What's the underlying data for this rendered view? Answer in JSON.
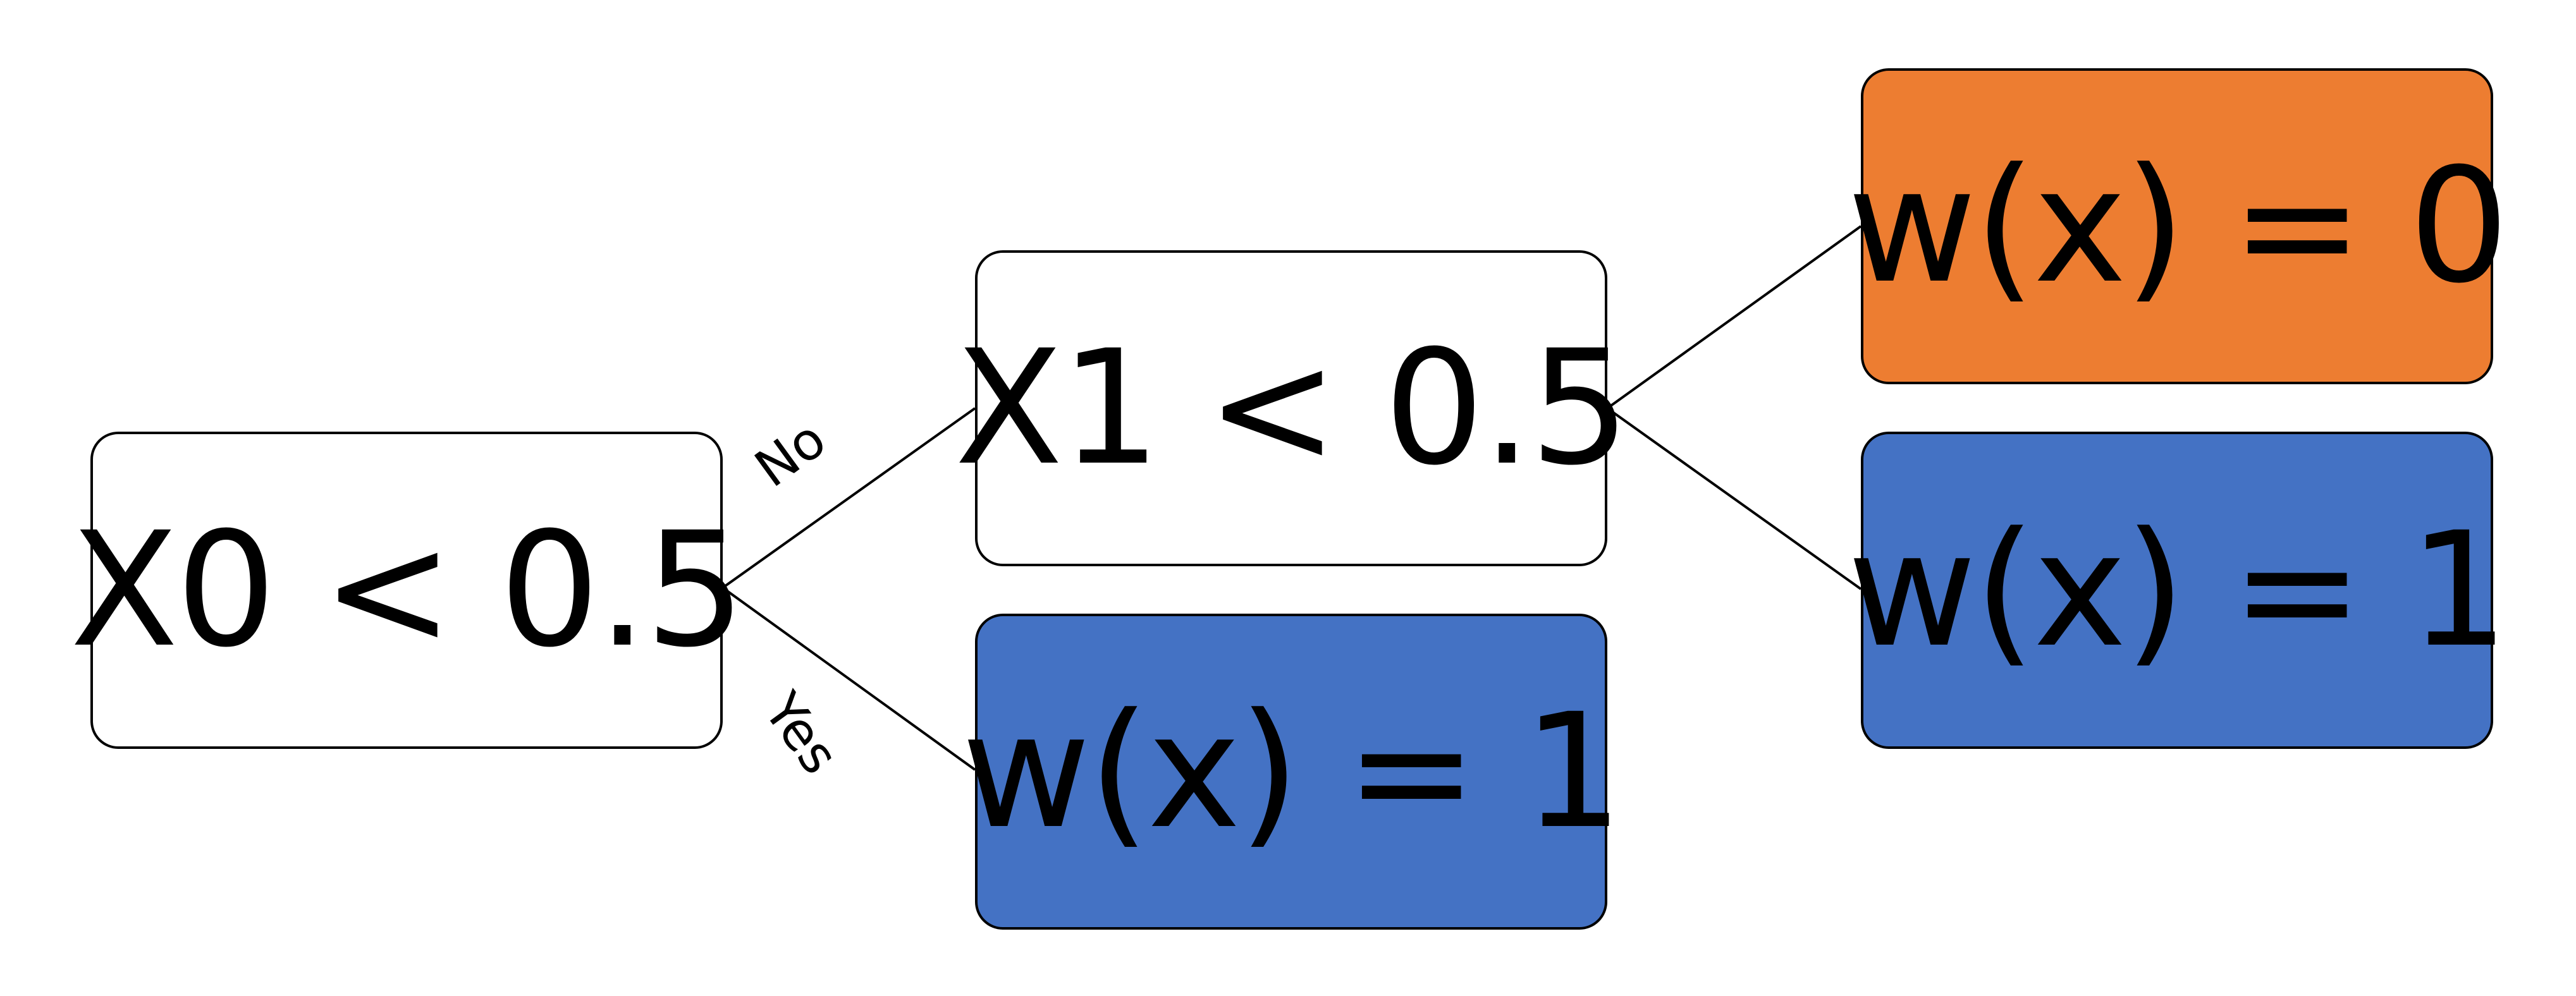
{
  "diagram": {
    "type": "decision-tree",
    "colors": {
      "decision_fill": "#ffffff",
      "leaf_w0_fill": "#ED7D31",
      "leaf_w1_fill": "#4472C4",
      "border": "#000000",
      "text": "#000000"
    },
    "nodes": {
      "root": {
        "label": "X0 < 0.5",
        "kind": "decision"
      },
      "x1_split": {
        "label": "X1 < 0.5",
        "kind": "decision"
      },
      "leaf_root_yes": {
        "label": "w(x) = 1",
        "kind": "leaf",
        "value": 1
      },
      "leaf_x1_no": {
        "label": "w(x) = 0",
        "kind": "leaf",
        "value": 0
      },
      "leaf_x1_yes": {
        "label": "w(x) = 1",
        "kind": "leaf",
        "value": 1
      }
    },
    "edges": [
      {
        "from": "root",
        "to": "x1_split",
        "label": "No"
      },
      {
        "from": "root",
        "to": "leaf_root_yes",
        "label": "Yes"
      },
      {
        "from": "x1_split",
        "to": "leaf_x1_no",
        "label": ""
      },
      {
        "from": "x1_split",
        "to": "leaf_x1_yes",
        "label": ""
      }
    ]
  }
}
